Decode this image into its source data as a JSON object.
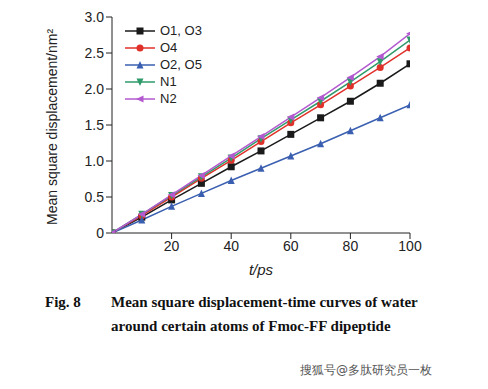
{
  "chart_data": {
    "type": "line",
    "xlabel": "t/ps",
    "ylabel": "Mean square displacement/nm²",
    "x": [
      0,
      10,
      20,
      30,
      40,
      50,
      60,
      70,
      80,
      90,
      100
    ],
    "series": [
      {
        "name": "O1, O3",
        "color": "#1a1a1a",
        "marker": "square",
        "values": [
          0,
          0.22,
          0.46,
          0.69,
          0.92,
          1.14,
          1.37,
          1.6,
          1.83,
          2.08,
          2.35
        ]
      },
      {
        "name": "O4",
        "color": "#e0302a",
        "marker": "circle",
        "values": [
          0,
          0.24,
          0.5,
          0.76,
          1.01,
          1.27,
          1.53,
          1.78,
          2.04,
          2.3,
          2.57
        ]
      },
      {
        "name": "O2, O5",
        "color": "#3a5fb0",
        "marker": "triangle",
        "values": [
          0,
          0.18,
          0.37,
          0.55,
          0.73,
          0.9,
          1.07,
          1.24,
          1.42,
          1.6,
          1.78
        ]
      },
      {
        "name": "N1",
        "color": "#2f9a6a",
        "marker": "triangle_down",
        "values": [
          0,
          0.26,
          0.52,
          0.78,
          1.04,
          1.31,
          1.57,
          1.83,
          2.1,
          2.38,
          2.68
        ]
      },
      {
        "name": "N2",
        "color": "#b45ad0",
        "marker": "triangle_left",
        "values": [
          0,
          0.26,
          0.53,
          0.8,
          1.07,
          1.34,
          1.61,
          1.88,
          2.16,
          2.45,
          2.77
        ]
      }
    ],
    "xlim": [
      0,
      100
    ],
    "xticks": [
      20,
      40,
      60,
      80,
      100
    ],
    "ylim": [
      0,
      3
    ],
    "yticks": [
      0,
      0.5,
      {
        "value": 1,
        "label": "1.0"
      },
      1.5,
      {
        "value": 2,
        "label": "2.0"
      },
      2.5,
      {
        "value": 3,
        "label": "3.0"
      }
    ],
    "legend": "upper left",
    "caption_label": "Fig. 8",
    "caption": "Mean square displacement-time curves of water around certain atoms of Fmoc-FF dipeptide",
    "watermark": "搜狐号@多肽研究员一枚"
  }
}
